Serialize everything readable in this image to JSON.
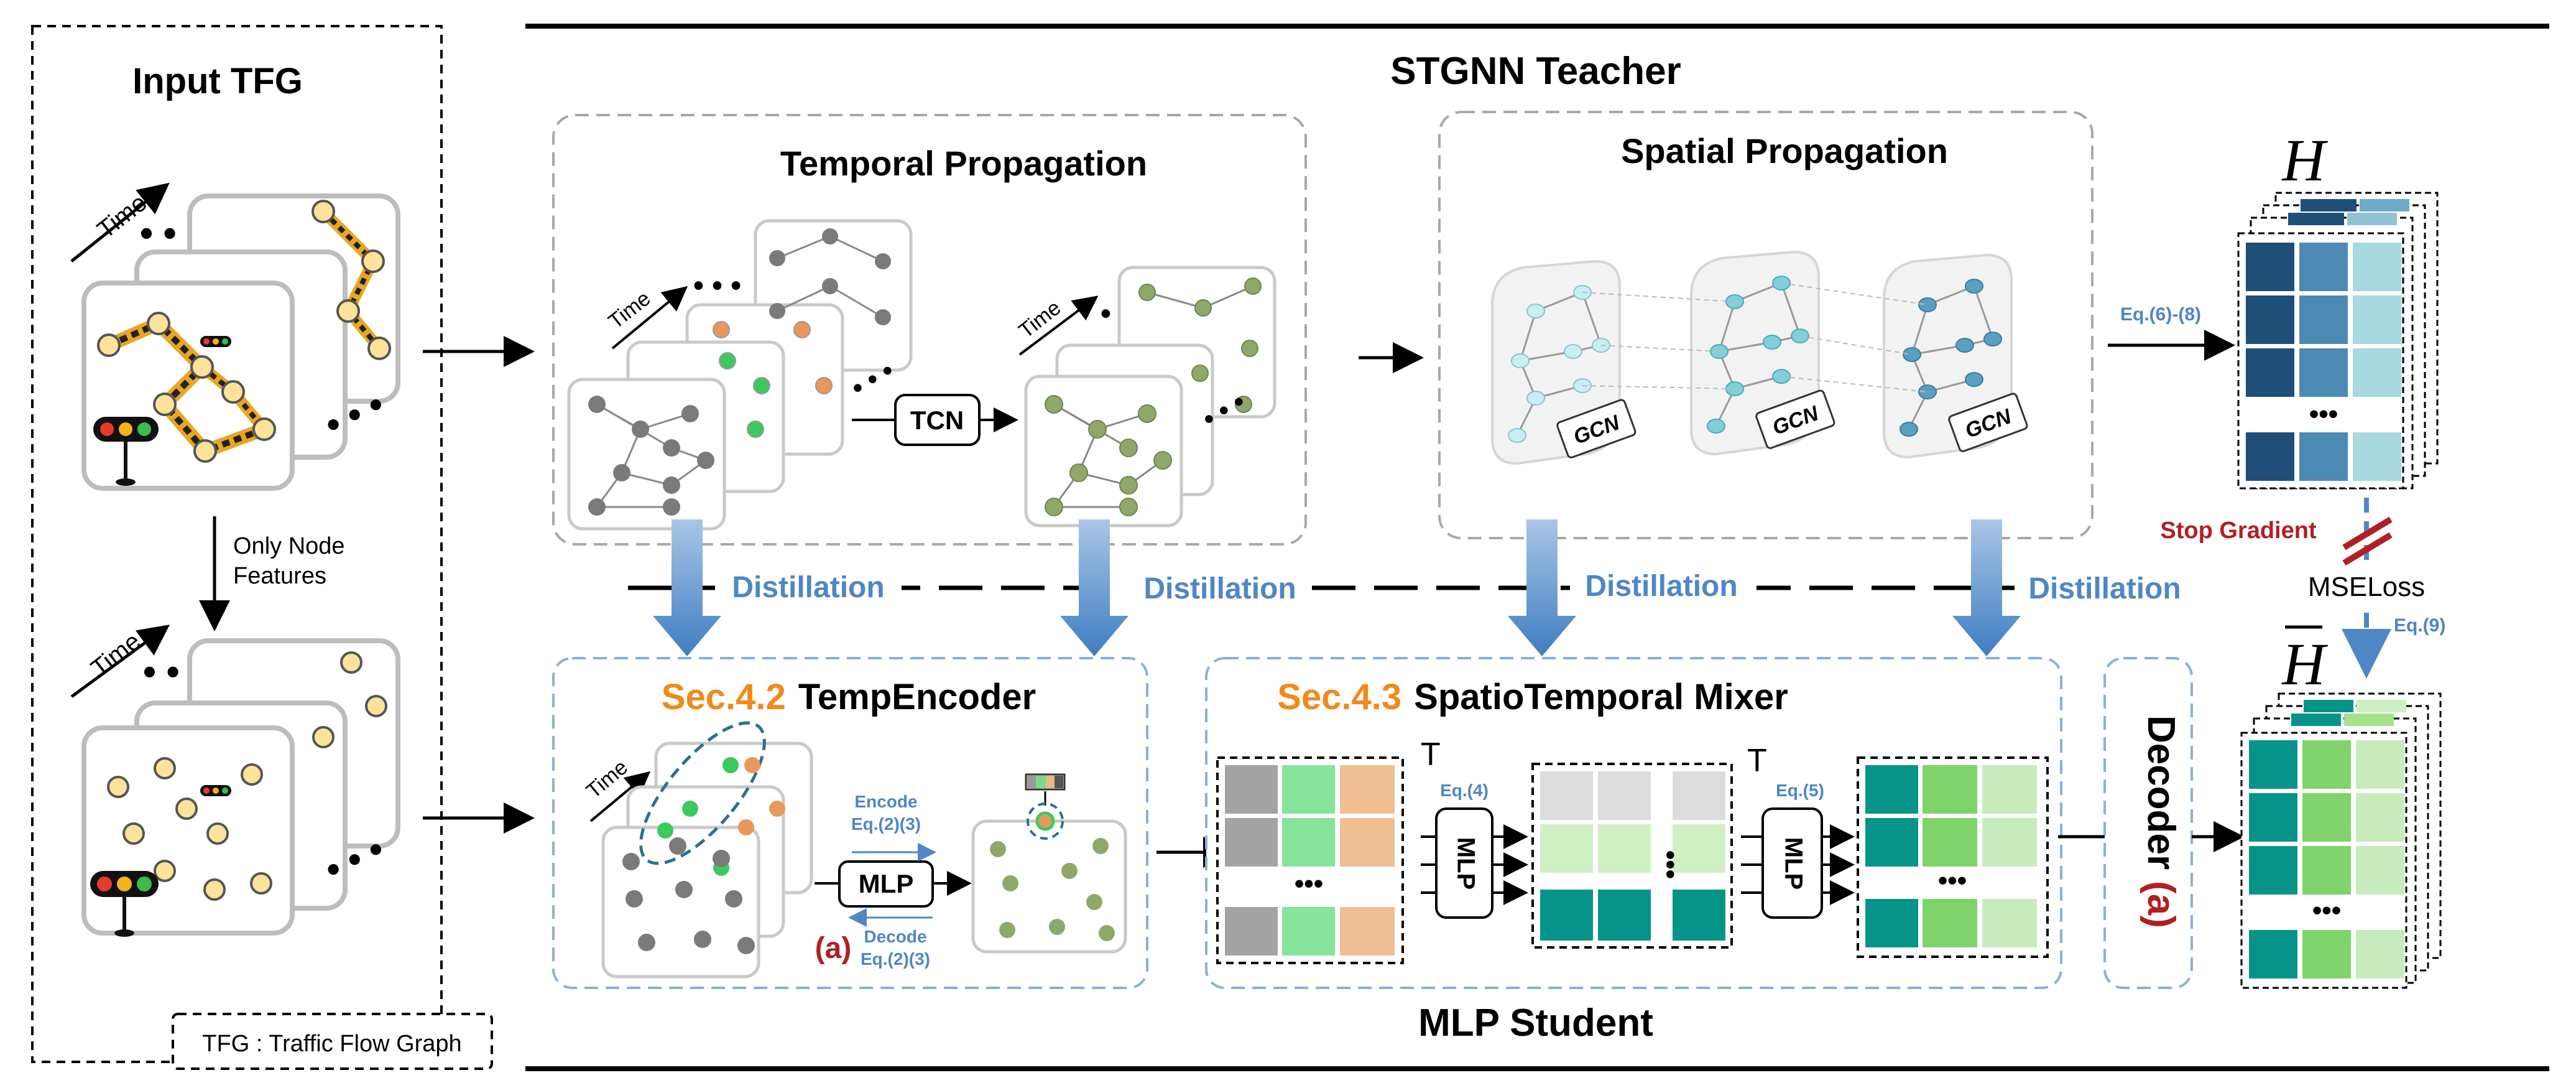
{
  "colors": {
    "accent_orange": "#F08A1C",
    "distill_blue": "#4F86C6",
    "stop_red": "#B01F24",
    "node_yellow": "#FBE39A",
    "node_green": "#3CC95E",
    "node_orange": "#E8985A",
    "node_gray": "#7A7A7A",
    "node_olive": "#8FA86A",
    "teal": "#079488",
    "navy": "#1F4E79"
  },
  "input": {
    "title": "Input TFG",
    "time_label": "Time",
    "only_node_features": "Only Node\nFeatures",
    "legend": "TFG : Traffic Flow Graph"
  },
  "teacher": {
    "title": "STGNN Teacher",
    "temporal_title": "Temporal Propagation",
    "spatial_title": "Spatial Propagation",
    "tcn_label": "TCN",
    "gcn_label": "GCN",
    "time_label": "Time",
    "eq_label": "Eq.(6)-(8)"
  },
  "distillation": {
    "label": "Distillation",
    "stop_gradient": "Stop Gradient",
    "mse_loss": "MSELoss",
    "eq9": "Eq.(9)"
  },
  "student": {
    "title": "MLP Student",
    "tempencoder_sec": "Sec.4.2",
    "tempencoder_title": "TempEncoder",
    "mixer_sec": "Sec.4.3",
    "mixer_title": "SpatioTemporal Mixer",
    "mlp_label": "MLP",
    "encode_label": "Encode\nEq.(2)(3)",
    "decode_label": "Decode\nEq.(2)(3)",
    "a_label": "(a)",
    "eq4": "Eq.(4)",
    "eq5": "Eq.(5)",
    "transpose": "T",
    "decoder_label": "Decoder",
    "time_label": "Time"
  },
  "outputs": {
    "h_label": "H",
    "hbar_label": "H"
  }
}
